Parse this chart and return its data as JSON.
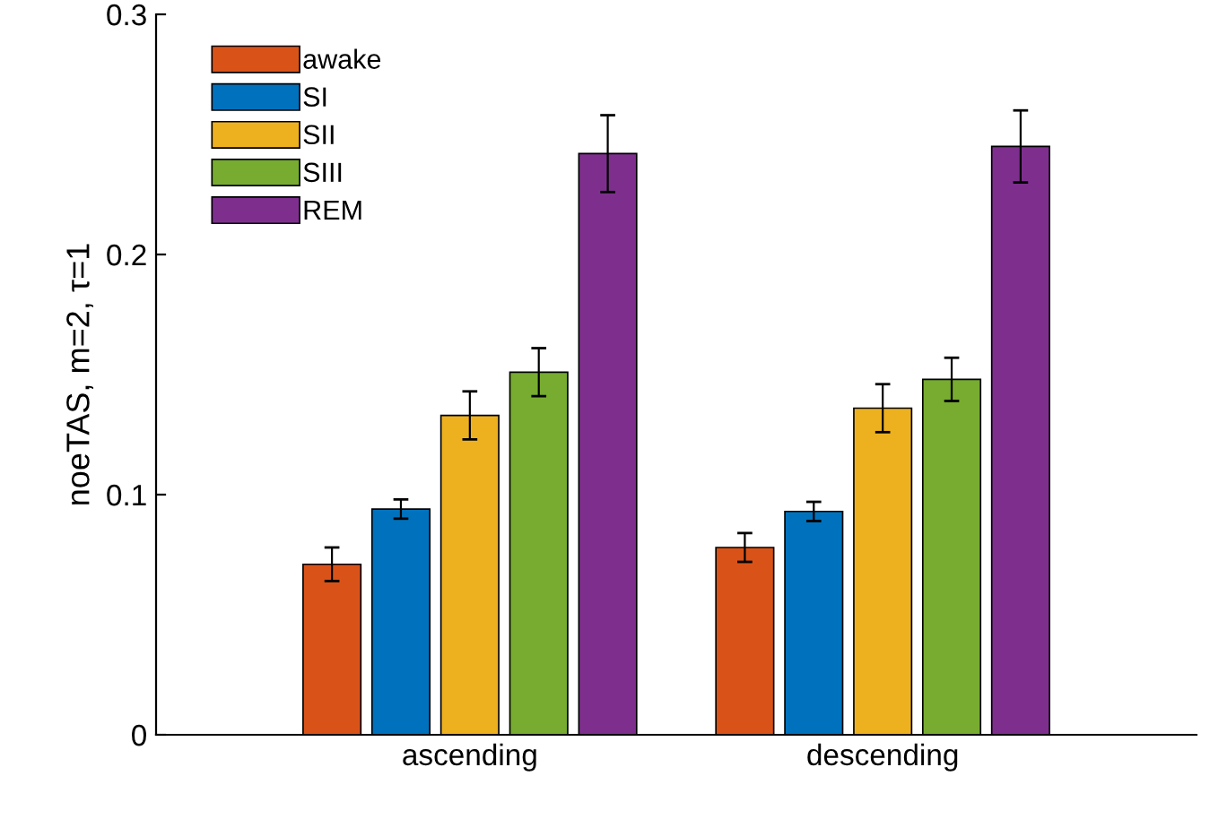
{
  "chart_data": {
    "type": "bar",
    "ylabel": "noeTAS, m=2, τ=1",
    "categories": [
      "ascending",
      "descending"
    ],
    "series": [
      {
        "name": "awake",
        "color": "#d95319",
        "values": [
          0.071,
          0.078
        ],
        "errors": [
          0.007,
          0.006
        ]
      },
      {
        "name": "SI",
        "color": "#0072bd",
        "values": [
          0.094,
          0.093
        ],
        "errors": [
          0.004,
          0.004
        ]
      },
      {
        "name": "SII",
        "color": "#edb120",
        "values": [
          0.133,
          0.136
        ],
        "errors": [
          0.01,
          0.01
        ]
      },
      {
        "name": "SIII",
        "color": "#77ac30",
        "values": [
          0.151,
          0.148
        ],
        "errors": [
          0.01,
          0.009
        ]
      },
      {
        "name": "REM",
        "color": "#7e2f8e",
        "values": [
          0.242,
          0.245
        ],
        "errors": [
          0.016,
          0.015
        ]
      }
    ],
    "ylim": [
      0,
      0.3
    ],
    "yticks": [
      0,
      0.1,
      0.2,
      0.3
    ],
    "grid": false,
    "legend": "top left"
  }
}
